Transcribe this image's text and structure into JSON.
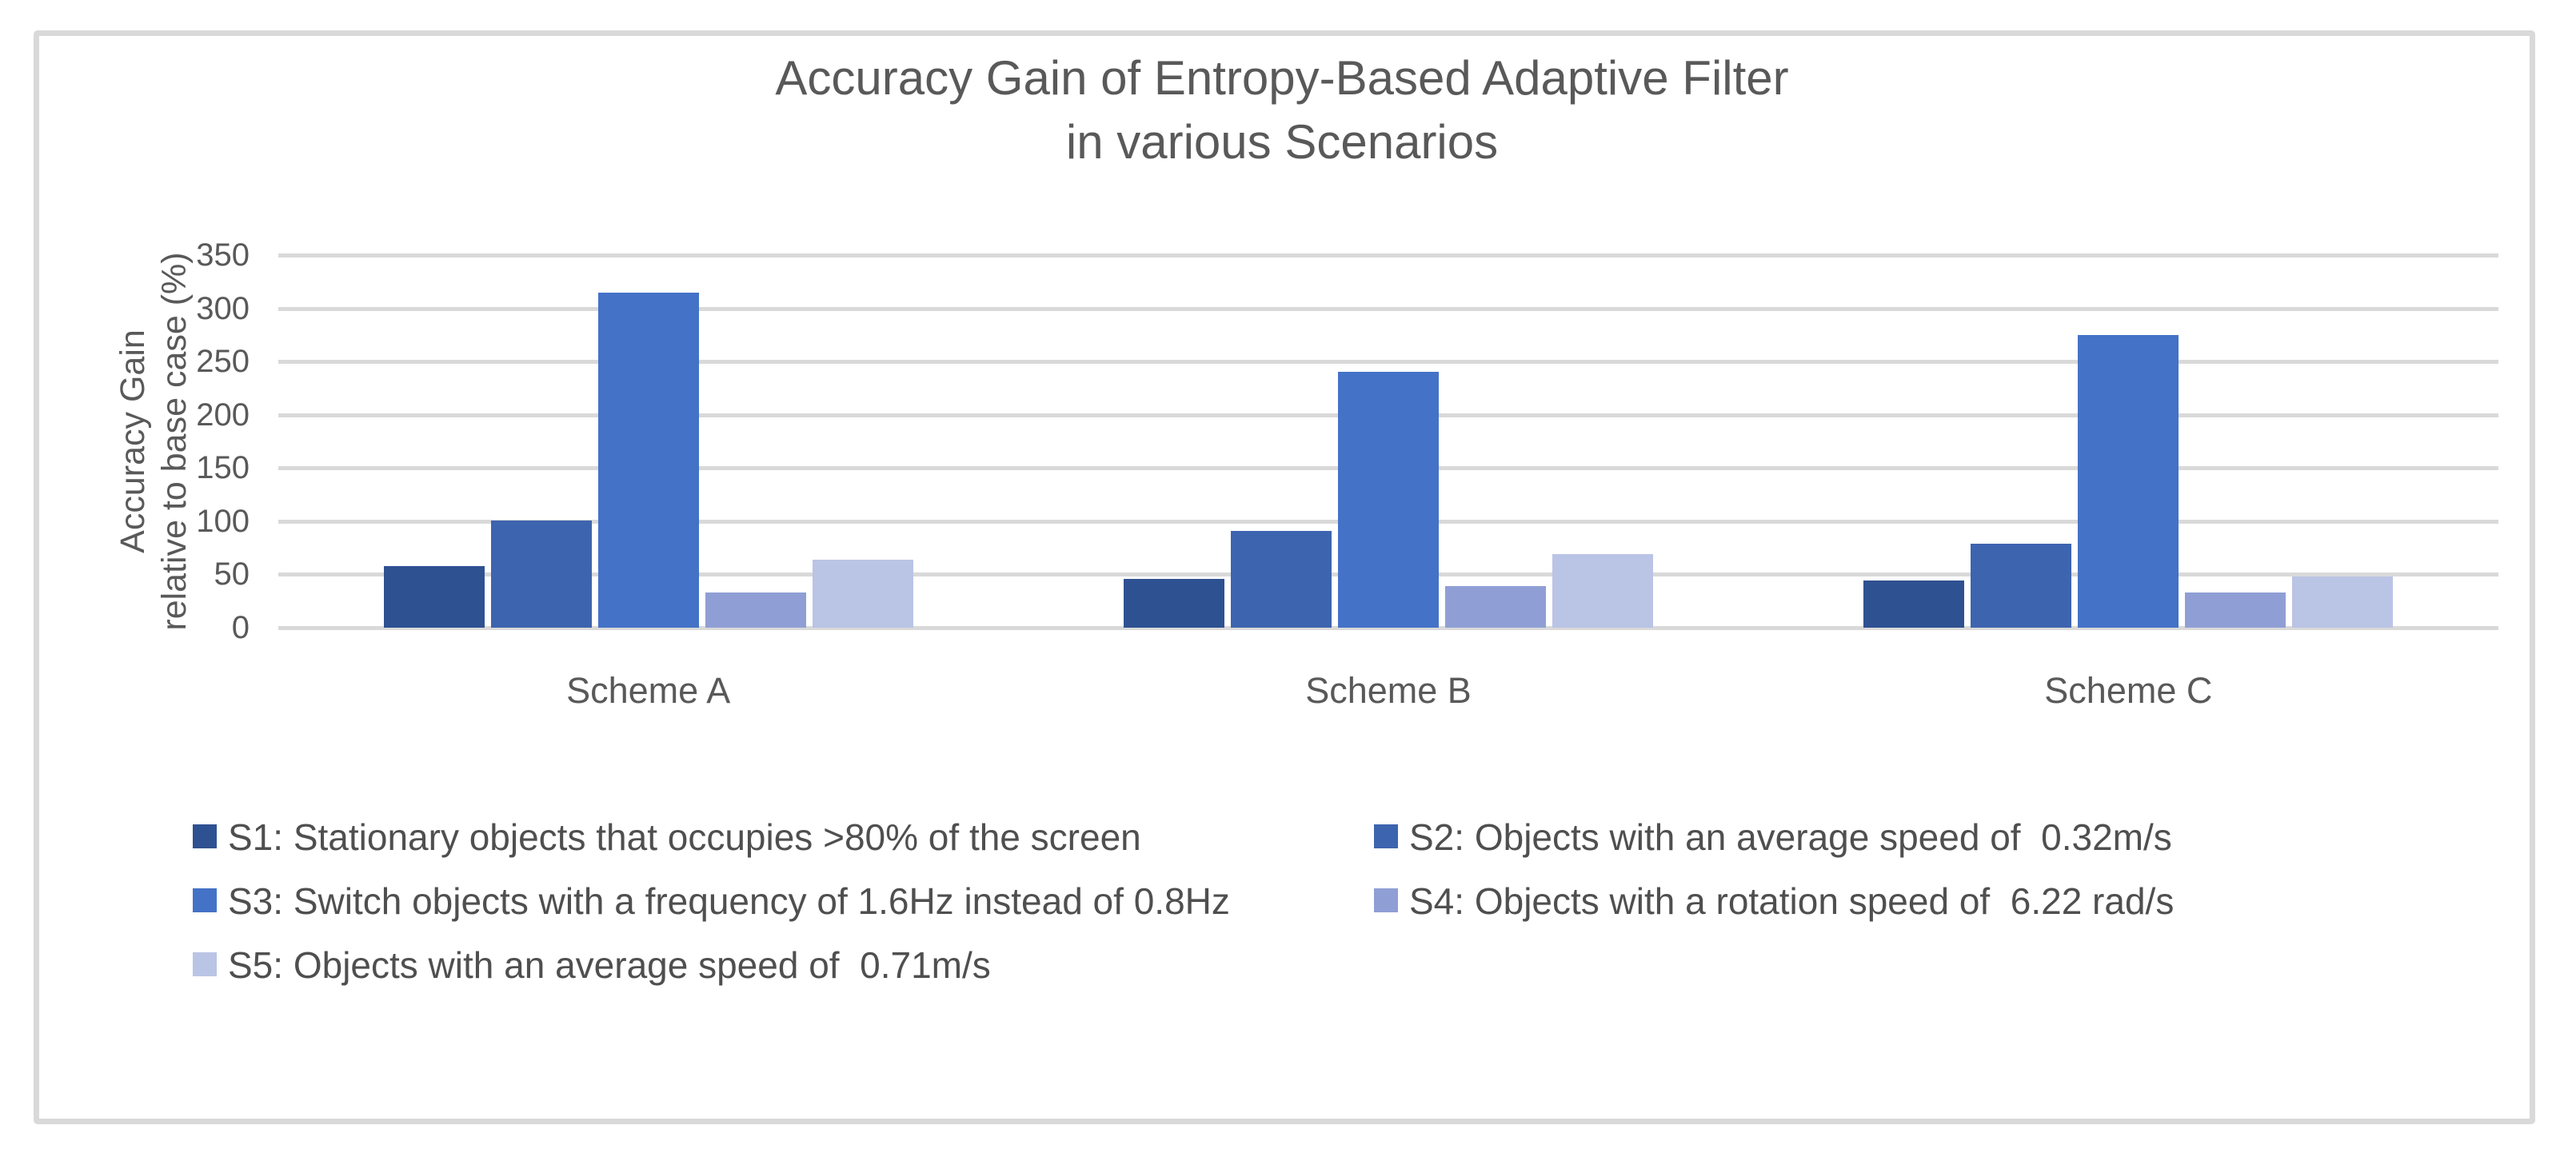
{
  "chart_data": {
    "type": "bar",
    "title_lines": [
      "Accuracy Gain of Entropy-Based Adaptive Filter",
      "in various Scenarios"
    ],
    "ylabel_lines": [
      "Accuracy Gain",
      "relative to base case (%)"
    ],
    "categories": [
      "Scheme A",
      "Scheme B",
      "Scheme C"
    ],
    "series": [
      {
        "name": "S1: Stationary objects that occupies >80% of the screen",
        "color": "#2E5191",
        "values": [
          58,
          46,
          44
        ]
      },
      {
        "name": "S2: Objects with an average speed of  0.32m/s",
        "color": "#3D64AE",
        "values": [
          101,
          91,
          79
        ]
      },
      {
        "name": "S3: Switch objects with a frequency of 1.6Hz instead of 0.8Hz",
        "color": "#4472C7",
        "values": [
          315,
          240,
          275
        ]
      },
      {
        "name": "S4: Objects with a rotation speed of  6.22 rad/s",
        "color": "#8F9FD5",
        "values": [
          33,
          39,
          33
        ]
      },
      {
        "name": "S5: Objects with an average speed of  0.71m/s",
        "color": "#BAC4E5",
        "values": [
          64,
          69,
          48
        ]
      }
    ],
    "ylim": [
      0,
      350
    ],
    "yticks": [
      0,
      50,
      100,
      150,
      200,
      250,
      300,
      350
    ],
    "grid": true,
    "legend_position": "bottom",
    "colors": {
      "text": "#595959",
      "gridline": "#D9D9D9",
      "frame_border": "#D9D9D9",
      "background": "#FFFFFF"
    }
  }
}
